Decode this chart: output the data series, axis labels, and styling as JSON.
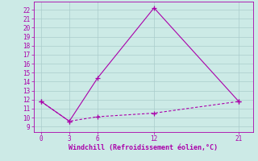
{
  "line1_x": [
    0,
    3,
    6,
    12,
    21
  ],
  "line1_y": [
    11.8,
    9.6,
    14.4,
    22.2,
    11.8
  ],
  "line2_x": [
    0,
    3,
    6,
    12,
    21
  ],
  "line2_y": [
    11.8,
    9.6,
    10.1,
    10.5,
    11.8
  ],
  "line_color": "#aa00aa",
  "bg_color": "#cceae6",
  "grid_color": "#aacccc",
  "xlabel": "Windchill (Refroidissement éolien,°C)",
  "xticks": [
    0,
    3,
    6,
    12,
    21
  ],
  "yticks": [
    9,
    10,
    11,
    12,
    13,
    14,
    15,
    16,
    17,
    18,
    19,
    20,
    21,
    22
  ],
  "ylim": [
    8.4,
    22.9
  ],
  "xlim": [
    -0.8,
    22.5
  ]
}
